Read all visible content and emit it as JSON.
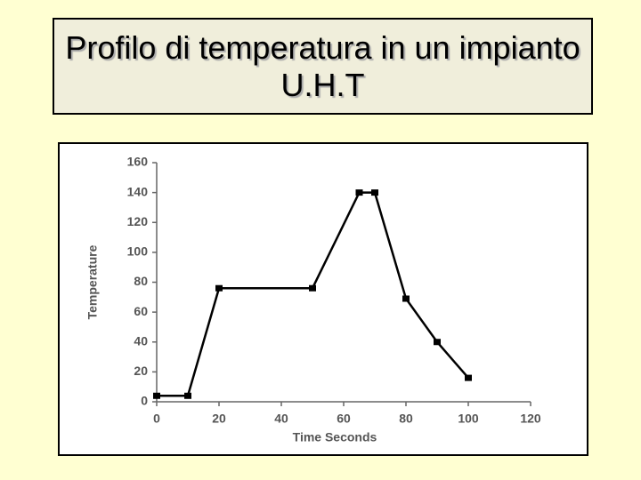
{
  "chart_data": {
    "type": "line",
    "title": "Profilo di temperatura in un impianto U.H.T",
    "xlabel": "Time Seconds",
    "ylabel": "Temperature",
    "x": [
      0,
      10,
      20,
      50,
      65,
      70,
      80,
      90,
      100
    ],
    "series": [
      {
        "name": "Temperature",
        "color": "#000000",
        "values": [
          4,
          4,
          76,
          76,
          140,
          140,
          69,
          40,
          16
        ]
      }
    ],
    "xlim": [
      0,
      120
    ],
    "xticks": [
      0,
      20,
      40,
      60,
      80,
      100,
      120
    ],
    "ylim": [
      0,
      160
    ],
    "yticks": [
      0,
      20,
      40,
      60,
      80,
      100,
      120,
      140,
      160
    ],
    "grid": false
  }
}
